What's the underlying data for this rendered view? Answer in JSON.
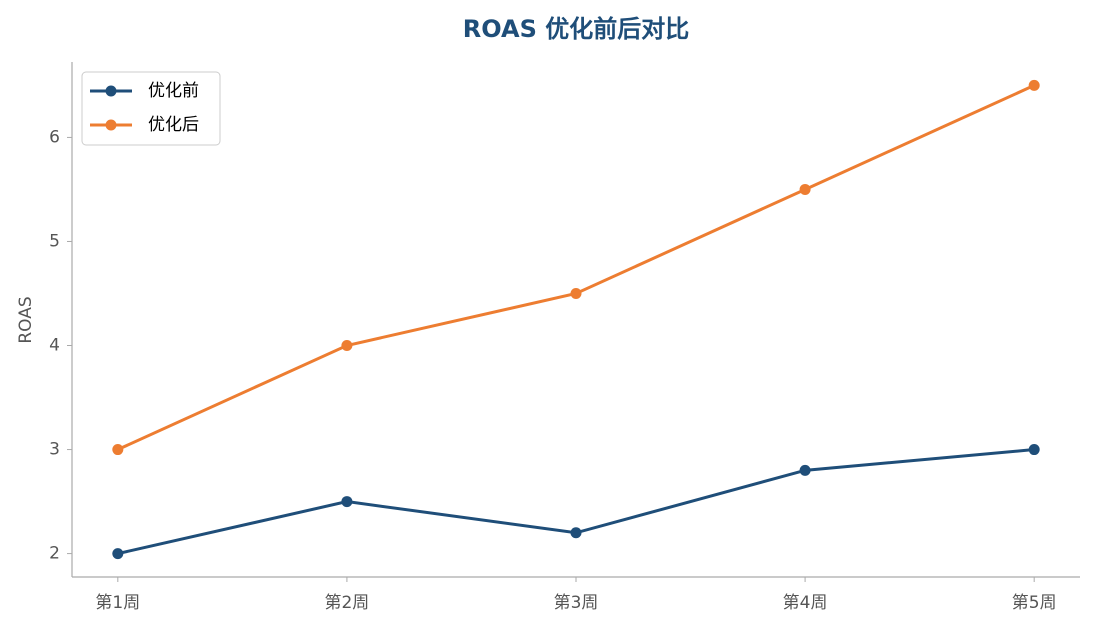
{
  "chart_data": {
    "type": "line",
    "title": "ROAS 优化前后对比",
    "y_label": "ROAS",
    "categories": [
      "第1周",
      "第2周",
      "第3周",
      "第4周",
      "第5周"
    ],
    "series": [
      {
        "name": "优化前",
        "color": "#1f4e79",
        "values": [
          2,
          2.5,
          2.2,
          2.8,
          3
        ]
      },
      {
        "name": "优化后",
        "color": "#ed7d31",
        "values": [
          3,
          4,
          4.5,
          5.5,
          6.5
        ]
      }
    ],
    "ylim": [
      1.775,
      6.725
    ],
    "yticks": [
      2,
      3,
      4,
      5,
      6
    ],
    "grid": false,
    "legend": "upper left"
  }
}
